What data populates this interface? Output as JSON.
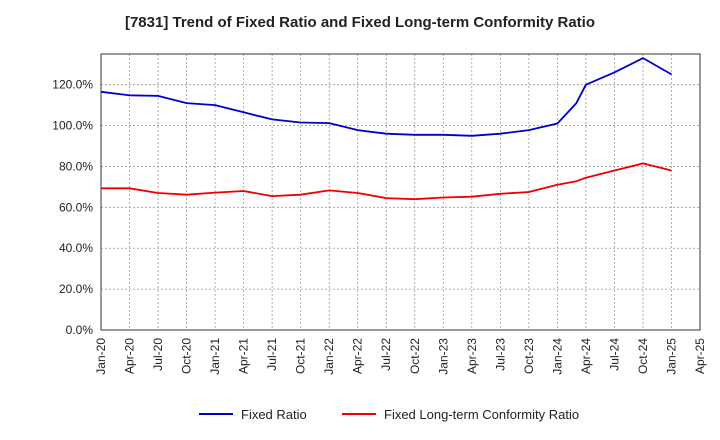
{
  "chart_data": {
    "type": "line",
    "title": "[7831]  Trend of Fixed Ratio and Fixed Long-term Conformity Ratio",
    "xlabel": "",
    "ylabel": "",
    "x_tick_labels": [
      "Jan-20",
      "Apr-20",
      "Jul-20",
      "Oct-20",
      "Jan-21",
      "Apr-21",
      "Jul-21",
      "Oct-21",
      "Jan-22",
      "Apr-22",
      "Jul-22",
      "Oct-22",
      "Jan-23",
      "Apr-23",
      "Jul-23",
      "Oct-23",
      "Jan-24",
      "Apr-24",
      "Jul-24",
      "Oct-24",
      "Jan-25",
      "Apr-25"
    ],
    "y_tick_labels": [
      "0.0%",
      "20.0%",
      "40.0%",
      "60.0%",
      "80.0%",
      "100.0%",
      "120.0%"
    ],
    "y_ticks": [
      0,
      20,
      40,
      60,
      80,
      100,
      120
    ],
    "ylim": [
      0,
      135
    ],
    "grid": true,
    "legend_position": "bottom",
    "x": [
      "Jan-20",
      "Apr-20",
      "Jul-20",
      "Oct-20",
      "Jan-21",
      "Apr-21",
      "Jul-21",
      "Oct-21",
      "Jan-22",
      "Apr-22",
      "Jul-22",
      "Oct-22",
      "Jan-23",
      "Apr-23",
      "Jul-23",
      "Oct-23",
      "Jan-24",
      "Mar-24",
      "Apr-24",
      "Jul-24",
      "Oct-24",
      "Jan-25"
    ],
    "series": [
      {
        "name": "Fixed Ratio",
        "color": "#0000cc",
        "values": [
          116.5,
          114.8,
          114.5,
          111.0,
          110.0,
          106.5,
          103.0,
          101.5,
          101.2,
          97.8,
          96.0,
          95.5,
          95.5,
          95.0,
          96.0,
          97.8,
          101.0,
          111.0,
          120.0,
          126.0,
          133.0,
          125.0
        ]
      },
      {
        "name": "Fixed Long-term Conformity Ratio",
        "color": "#ee0000",
        "values": [
          69.3,
          69.3,
          67.0,
          66.2,
          67.2,
          68.0,
          65.5,
          66.2,
          68.3,
          67.0,
          64.5,
          64.0,
          64.8,
          65.2,
          66.6,
          67.5,
          71.0,
          72.8,
          74.5,
          78.0,
          81.5,
          78.0
        ]
      }
    ]
  }
}
